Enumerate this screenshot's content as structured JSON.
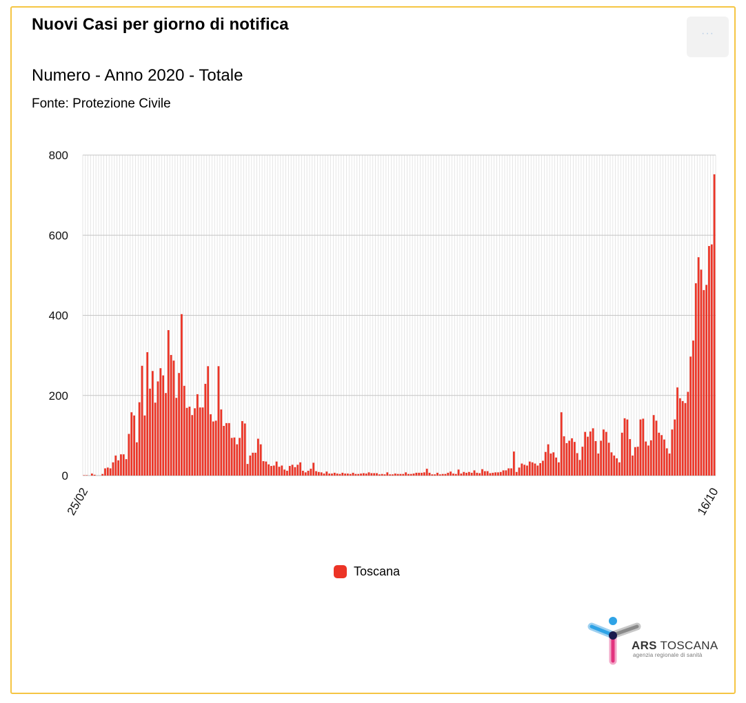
{
  "header": {
    "title": "Nuovi Casi per giorno di notifica",
    "subtitle": "Numero - Anno 2020 - Totale",
    "source": "Fonte: Protezione Civile",
    "menu_label": "···"
  },
  "logo": {
    "name_bold": "ARS",
    "name_rest": " TOSCANA",
    "tagline": "agenzia regionale di sanità"
  },
  "colors": {
    "bar": "#ec3426",
    "border": "#f5c542",
    "grid": "#d0d0d0"
  },
  "chart_data": {
    "type": "bar",
    "title": "Nuovi Casi per giorno di notifica",
    "subtitle": "Numero - Anno 2020 - Totale",
    "xlabel": "",
    "ylabel": "",
    "ylim": [
      0,
      800
    ],
    "yticks": [
      0,
      200,
      400,
      600,
      800
    ],
    "x_tick_labels": [
      "25/02",
      "16/10"
    ],
    "grid": true,
    "legend_position": "bottom-center",
    "series": [
      {
        "name": "Toscana",
        "color": "#ec3426",
        "values": [
          1,
          1,
          0,
          5,
          2,
          0,
          0,
          4,
          18,
          20,
          18,
          33,
          50,
          38,
          53,
          53,
          41,
          104,
          158,
          150,
          83,
          183,
          274,
          150,
          308,
          217,
          261,
          182,
          235,
          268,
          250,
          206,
          363,
          301,
          287,
          194,
          256,
          403,
          224,
          169,
          172,
          151,
          168,
          203,
          170,
          170,
          229,
          273,
          153,
          135,
          137,
          273,
          165,
          124,
          131,
          131,
          94,
          95,
          78,
          94,
          136,
          130,
          29,
          50,
          57,
          57,
          92,
          78,
          36,
          35,
          28,
          24,
          25,
          35,
          22,
          25,
          15,
          12,
          24,
          27,
          21,
          27,
          33,
          12,
          8,
          12,
          17,
          32,
          11,
          9,
          8,
          5,
          10,
          5,
          5,
          7,
          5,
          4,
          7,
          5,
          5,
          4,
          7,
          4,
          4,
          5,
          6,
          5,
          8,
          6,
          6,
          6,
          3,
          4,
          3,
          8,
          3,
          3,
          5,
          4,
          4,
          4,
          8,
          4,
          4,
          5,
          7,
          7,
          7,
          8,
          17,
          7,
          3,
          3,
          7,
          3,
          4,
          4,
          7,
          10,
          5,
          4,
          15,
          5,
          9,
          7,
          9,
          7,
          13,
          7,
          6,
          16,
          11,
          11,
          6,
          7,
          8,
          8,
          9,
          13,
          13,
          18,
          18,
          60,
          9,
          20,
          30,
          27,
          25,
          35,
          33,
          30,
          25,
          31,
          37,
          59,
          78,
          55,
          58,
          45,
          33,
          158,
          98,
          81,
          87,
          93,
          84,
          56,
          39,
          72,
          109,
          97,
          110,
          118,
          86,
          55,
          87,
          115,
          109,
          82,
          58,
          50,
          43,
          33,
          107,
          143,
          140,
          91,
          50,
          71,
          72,
          140,
          142,
          85,
          75,
          88,
          151,
          137,
          107,
          101,
          90,
          68,
          55,
          115,
          140,
          220,
          193,
          186,
          181,
          209,
          297,
          337,
          480,
          545,
          514,
          463,
          476,
          573,
          577,
          752
        ]
      }
    ]
  }
}
